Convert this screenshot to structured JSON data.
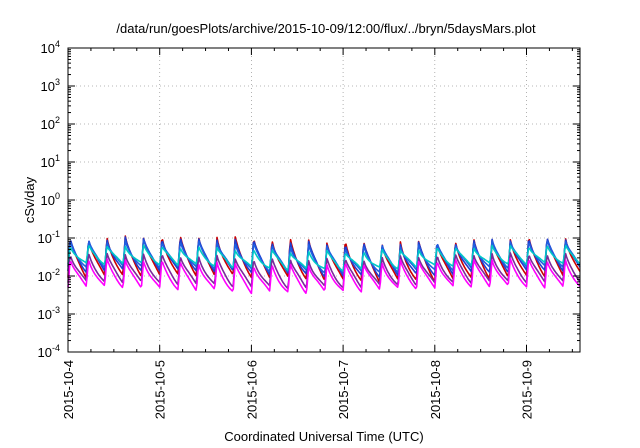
{
  "chart_data": {
    "type": "line",
    "title": "/data/run/goesPlots/archive/2015-10-09/12:00/flux/../bryn/5daysMars.plot",
    "xlabel": "Coordinated Universal Time (UTC)",
    "ylabel": "cSv/day",
    "yscale": "log",
    "ylim": [
      0.0001,
      10000
    ],
    "xlim": [
      "2015-10-04 00:00",
      "2015-10-09 14:00"
    ],
    "grid": true,
    "yticks": [
      {
        "base": "10",
        "exp": "-4"
      },
      {
        "base": "10",
        "exp": "-3"
      },
      {
        "base": "10",
        "exp": "-2"
      },
      {
        "base": "10",
        "exp": "-1"
      },
      {
        "base": "10",
        "exp": "0"
      },
      {
        "base": "10",
        "exp": "1"
      },
      {
        "base": "10",
        "exp": "2"
      },
      {
        "base": "10",
        "exp": "3"
      },
      {
        "base": "10",
        "exp": "4"
      }
    ],
    "xticks": [
      "2015-10-4",
      "2015-10-5",
      "2015-10-6",
      "2015-10-7",
      "2015-10-8",
      "2015-10-9"
    ],
    "series": [
      {
        "color": "#cc0000",
        "peak": 0.1,
        "trough": 0.009
      },
      {
        "color": "#1f3fd0",
        "peak": 0.09,
        "trough": 0.012
      },
      {
        "color": "#2060e0",
        "peak": 0.075,
        "trough": 0.015
      },
      {
        "color": "#00c8c8",
        "peak": 0.055,
        "trough": 0.018
      },
      {
        "color": "#7a2a9a",
        "peak": 0.035,
        "trough": 0.006
      },
      {
        "color": "#ff00ff",
        "peak": 0.025,
        "trough": 0.0045
      }
    ],
    "cycle_hours": 4.8
  }
}
